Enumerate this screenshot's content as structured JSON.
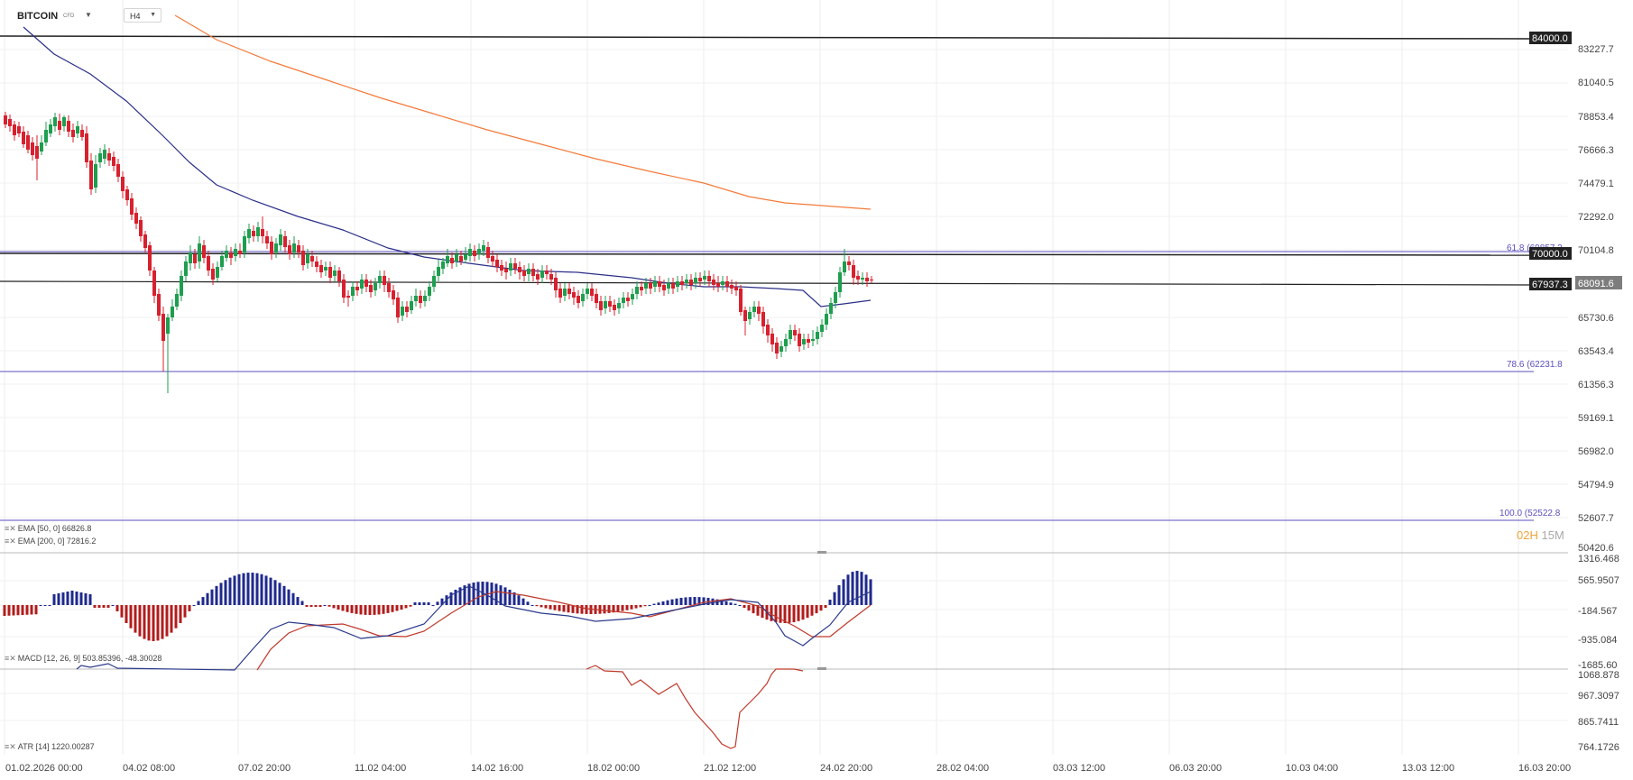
{
  "header": {
    "symbol": "BITCOIN",
    "symbol_badge": "CFD",
    "timeframe": "H4"
  },
  "price_axis": {
    "labels": [
      "83227.7",
      "81040.5",
      "78853.4",
      "76666.3",
      "74479.1",
      "72292.0",
      "70104.8",
      "65730.6",
      "63543.4",
      "61356.3",
      "59169.1",
      "56982.0",
      "54794.9",
      "52607.7",
      "50420.6"
    ]
  },
  "price_tags": {
    "level_84000": "84000.0",
    "level_70000": "70000.0",
    "level_67937": "67937.3",
    "current": "68091.6"
  },
  "fib_labels": {
    "f618": "61.8 (69857.2",
    "f786": "78.6 (62231.8",
    "f100": "100.0 (52522.8"
  },
  "indicators": {
    "ema50": "EMA [50, 0]  66826.8",
    "ema200": "EMA [200, 0]  72816.2",
    "macd": "MACD [12, 26, 9]  503.85396,  -48.30028",
    "atr": "ATR [14]  1220.00287"
  },
  "macd_axis": {
    "labels": [
      "1316.468",
      "565.9507",
      "-184.567",
      "-935.084",
      "-1685.60"
    ]
  },
  "atr_axis": {
    "labels": [
      "1068.878",
      "967.3097",
      "865.7411",
      "764.1726"
    ]
  },
  "time_axis": {
    "labels": [
      "01.02.2026  00:00",
      "04.02  08:00",
      "07.02  20:00",
      "11.02  04:00",
      "14.02  16:00",
      "18.02  00:00",
      "21.02  12:00",
      "24.02  20:00",
      "28.02  04:00",
      "03.03  12:00",
      "06.03  20:00",
      "10.03  04:00",
      "13.03  12:00",
      "16.03  20:00"
    ]
  },
  "countdown": {
    "hours": "02H",
    "minutes": "15M"
  },
  "colors": {
    "bull": "#1e9e4f",
    "bear": "#d8202e",
    "ema50": "#2b2f88",
    "ema200": "#f47a3a",
    "fib": "#5b4fbf",
    "macd_pos": "#1f2a8c",
    "macd_neg": "#b21c1c"
  }
}
